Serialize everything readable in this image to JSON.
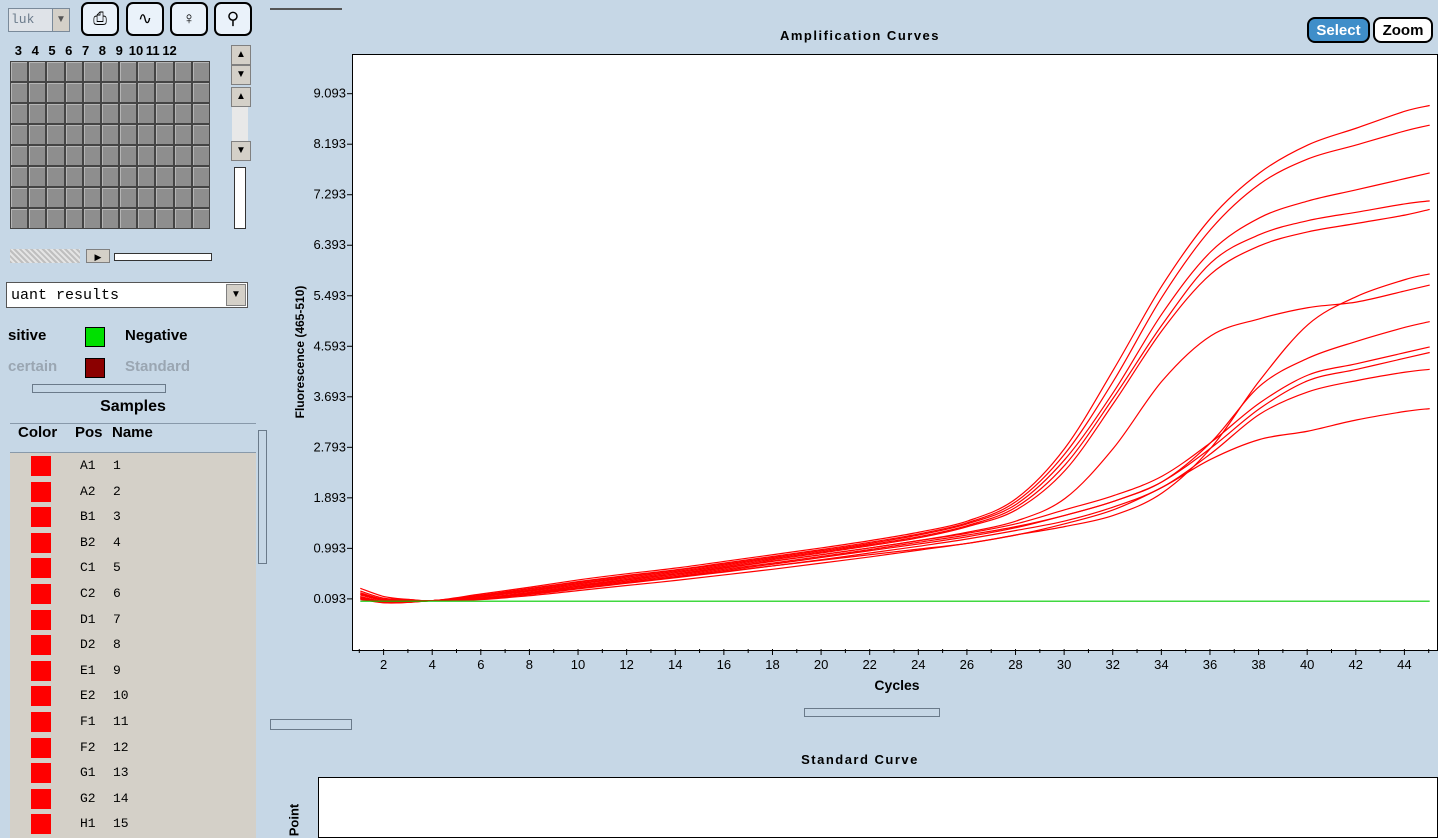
{
  "toolbar": {
    "combo_value": "luk",
    "column_numbers": [
      "3",
      "4",
      "5",
      "6",
      "7",
      "8",
      "9",
      "10",
      "11",
      "12"
    ]
  },
  "analysis_select": {
    "value": "uant results"
  },
  "legend": {
    "positive": "sitive",
    "negative": "Negative",
    "uncertain": "certain",
    "standard": "Standard",
    "negative_color": "#00e000",
    "standard_color": "#8b0000"
  },
  "samples": {
    "title": "Samples",
    "columns": [
      "Color",
      "Pos",
      "Name"
    ],
    "rows": [
      {
        "pos": "A1",
        "name": "1"
      },
      {
        "pos": "A2",
        "name": "2"
      },
      {
        "pos": "B1",
        "name": "3"
      },
      {
        "pos": "B2",
        "name": "4"
      },
      {
        "pos": "C1",
        "name": "5"
      },
      {
        "pos": "C2",
        "name": "6"
      },
      {
        "pos": "D1",
        "name": "7"
      },
      {
        "pos": "D2",
        "name": "8"
      },
      {
        "pos": "E1",
        "name": "9"
      },
      {
        "pos": "E2",
        "name": "10"
      },
      {
        "pos": "F1",
        "name": "11"
      },
      {
        "pos": "F2",
        "name": "12"
      },
      {
        "pos": "G1",
        "name": "13"
      },
      {
        "pos": "G2",
        "name": "14"
      },
      {
        "pos": "H1",
        "name": "15"
      }
    ],
    "row_color": "#ff0000"
  },
  "amplification": {
    "title": "Amplification Curves",
    "select_label": "Select",
    "zoom_label": "Zoom"
  },
  "standard_curve": {
    "title": "Standard Curve",
    "ylabel": "Point"
  },
  "chart_data": {
    "type": "line",
    "title": "Amplification Curves",
    "xlabel": "Cycles",
    "ylabel": "Fluorescence (465-510)",
    "xlim": [
      0.7,
      45.3
    ],
    "ylim": [
      -0.8,
      9.8
    ],
    "x_ticks": [
      2,
      4,
      6,
      8,
      10,
      12,
      14,
      16,
      18,
      20,
      22,
      24,
      26,
      28,
      30,
      32,
      34,
      36,
      38,
      40,
      42,
      44
    ],
    "y_ticks": [
      0.093,
      0.993,
      1.893,
      2.793,
      3.693,
      4.593,
      5.493,
      6.393,
      7.293,
      8.193,
      9.093
    ],
    "x": [
      1,
      2,
      3,
      4,
      6,
      8,
      10,
      12,
      14,
      16,
      18,
      20,
      22,
      24,
      26,
      28,
      30,
      32,
      34,
      36,
      38,
      40,
      42,
      44,
      45
    ],
    "series": [
      {
        "color": "#ff0000",
        "values": [
          0.3,
          0.15,
          0.1,
          0.08,
          0.2,
          0.32,
          0.45,
          0.56,
          0.66,
          0.78,
          0.9,
          1.02,
          1.15,
          1.3,
          1.5,
          1.9,
          2.8,
          4.2,
          5.7,
          6.9,
          7.7,
          8.2,
          8.5,
          8.8,
          8.9
        ]
      },
      {
        "color": "#ff0000",
        "values": [
          0.25,
          0.12,
          0.1,
          0.08,
          0.18,
          0.3,
          0.42,
          0.53,
          0.63,
          0.75,
          0.87,
          0.99,
          1.12,
          1.27,
          1.47,
          1.85,
          2.7,
          4.0,
          5.5,
          6.7,
          7.5,
          7.95,
          8.2,
          8.45,
          8.55
        ]
      },
      {
        "color": "#ff0000",
        "values": [
          0.2,
          0.1,
          0.08,
          0.08,
          0.17,
          0.29,
          0.41,
          0.52,
          0.62,
          0.73,
          0.85,
          0.97,
          1.1,
          1.25,
          1.45,
          1.8,
          2.6,
          3.8,
          5.2,
          6.3,
          6.9,
          7.2,
          7.4,
          7.6,
          7.7
        ]
      },
      {
        "color": "#ff0000",
        "values": [
          0.22,
          0.1,
          0.08,
          0.08,
          0.16,
          0.27,
          0.39,
          0.5,
          0.6,
          0.71,
          0.83,
          0.95,
          1.08,
          1.22,
          1.42,
          1.75,
          2.5,
          3.7,
          5.0,
          6.1,
          6.6,
          6.85,
          7.0,
          7.15,
          7.2
        ]
      },
      {
        "color": "#ff0000",
        "values": [
          0.18,
          0.08,
          0.07,
          0.08,
          0.15,
          0.26,
          0.38,
          0.48,
          0.58,
          0.69,
          0.81,
          0.93,
          1.06,
          1.2,
          1.4,
          1.7,
          2.4,
          3.6,
          4.9,
          5.9,
          6.4,
          6.65,
          6.8,
          6.95,
          7.05
        ]
      },
      {
        "color": "#ff0000",
        "values": [
          0.2,
          0.09,
          0.08,
          0.08,
          0.15,
          0.25,
          0.36,
          0.46,
          0.56,
          0.67,
          0.79,
          0.9,
          1.02,
          1.15,
          1.3,
          1.5,
          1.9,
          2.8,
          4.0,
          4.8,
          5.1,
          5.3,
          5.4,
          5.6,
          5.7
        ]
      },
      {
        "color": "#ff0000",
        "values": [
          0.15,
          0.06,
          0.06,
          0.08,
          0.12,
          0.2,
          0.3,
          0.4,
          0.5,
          0.6,
          0.7,
          0.8,
          0.9,
          1.0,
          1.1,
          1.25,
          1.4,
          1.6,
          2.0,
          2.8,
          4.0,
          5.0,
          5.5,
          5.8,
          5.9
        ]
      },
      {
        "color": "#ff0000",
        "values": [
          0.15,
          0.06,
          0.06,
          0.08,
          0.13,
          0.22,
          0.33,
          0.43,
          0.53,
          0.64,
          0.75,
          0.87,
          0.99,
          1.12,
          1.25,
          1.4,
          1.6,
          1.85,
          2.2,
          2.9,
          3.9,
          4.4,
          4.7,
          4.95,
          5.05
        ]
      },
      {
        "color": "#ff0000",
        "values": [
          0.14,
          0.05,
          0.06,
          0.08,
          0.13,
          0.23,
          0.34,
          0.45,
          0.55,
          0.66,
          0.78,
          0.9,
          1.02,
          1.15,
          1.28,
          1.45,
          1.7,
          1.95,
          2.3,
          2.9,
          3.6,
          4.1,
          4.3,
          4.5,
          4.6
        ]
      },
      {
        "color": "#ff0000",
        "values": [
          0.12,
          0.05,
          0.06,
          0.08,
          0.12,
          0.21,
          0.31,
          0.41,
          0.51,
          0.62,
          0.73,
          0.85,
          0.97,
          1.09,
          1.22,
          1.38,
          1.6,
          1.85,
          2.2,
          2.8,
          3.5,
          4.0,
          4.2,
          4.4,
          4.5
        ]
      },
      {
        "color": "#ff0000",
        "values": [
          0.12,
          0.04,
          0.05,
          0.08,
          0.11,
          0.19,
          0.29,
          0.39,
          0.49,
          0.59,
          0.7,
          0.81,
          0.93,
          1.05,
          1.18,
          1.33,
          1.5,
          1.75,
          2.1,
          2.7,
          3.4,
          3.8,
          4.0,
          4.15,
          4.2
        ]
      },
      {
        "color": "#ff0000",
        "values": [
          0.1,
          0.04,
          0.05,
          0.08,
          0.1,
          0.17,
          0.26,
          0.35,
          0.44,
          0.54,
          0.64,
          0.75,
          0.86,
          0.98,
          1.1,
          1.25,
          1.45,
          1.7,
          2.1,
          2.6,
          2.95,
          3.1,
          3.3,
          3.45,
          3.5
        ]
      },
      {
        "color": "#00cc00",
        "values": [
          0.07,
          0.07,
          0.07,
          0.07,
          0.07,
          0.07,
          0.07,
          0.07,
          0.07,
          0.07,
          0.07,
          0.07,
          0.07,
          0.07,
          0.07,
          0.07,
          0.07,
          0.07,
          0.07,
          0.07,
          0.07,
          0.07,
          0.07,
          0.07,
          0.07
        ]
      }
    ],
    "grid": false
  }
}
